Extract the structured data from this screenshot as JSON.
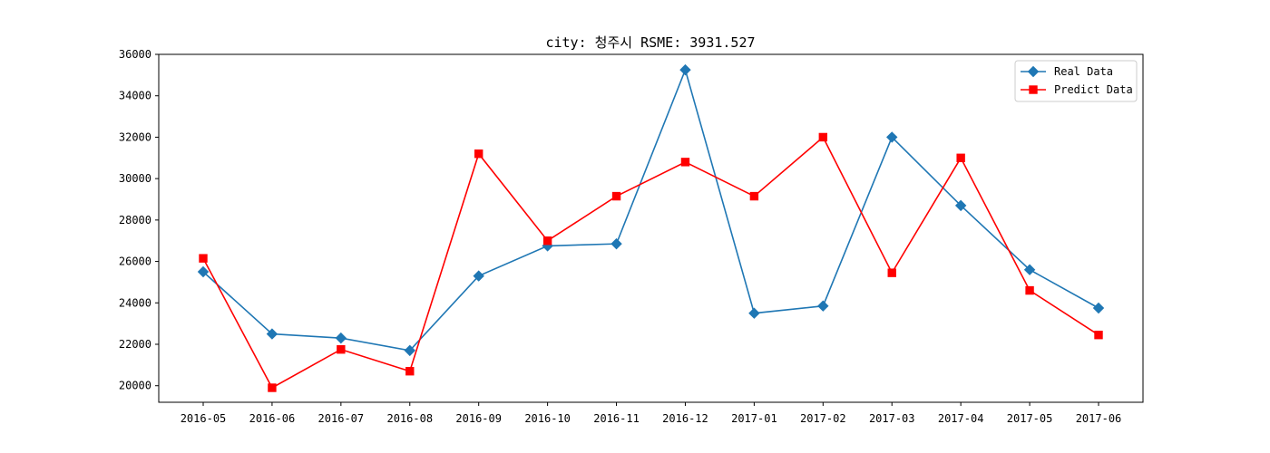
{
  "chart_data": {
    "type": "line",
    "title": "city: 청주시  RSME: 3931.527",
    "categories": [
      "2016-05",
      "2016-06",
      "2016-07",
      "2016-08",
      "2016-09",
      "2016-10",
      "2016-11",
      "2016-12",
      "2017-01",
      "2017-02",
      "2017-03",
      "2017-04",
      "2017-05",
      "2017-06"
    ],
    "series": [
      {
        "name": "Real Data",
        "color": "#1f77b4",
        "marker": "diamond",
        "values": [
          25500,
          22500,
          22300,
          21700,
          25300,
          26750,
          26850,
          35250,
          23500,
          23850,
          32000,
          28700,
          25600,
          23750
        ]
      },
      {
        "name": "Predict Data",
        "color": "#ff0000",
        "marker": "square",
        "values": [
          26150,
          19900,
          21750,
          20700,
          31200,
          27000,
          29150,
          30800,
          29150,
          32000,
          25450,
          31000,
          24600,
          22450
        ]
      }
    ],
    "ylim": [
      19200,
      36000
    ],
    "yticks": [
      20000,
      22000,
      24000,
      26000,
      28000,
      30000,
      32000,
      34000,
      36000
    ],
    "grid": false,
    "legend_position": "top-right"
  }
}
